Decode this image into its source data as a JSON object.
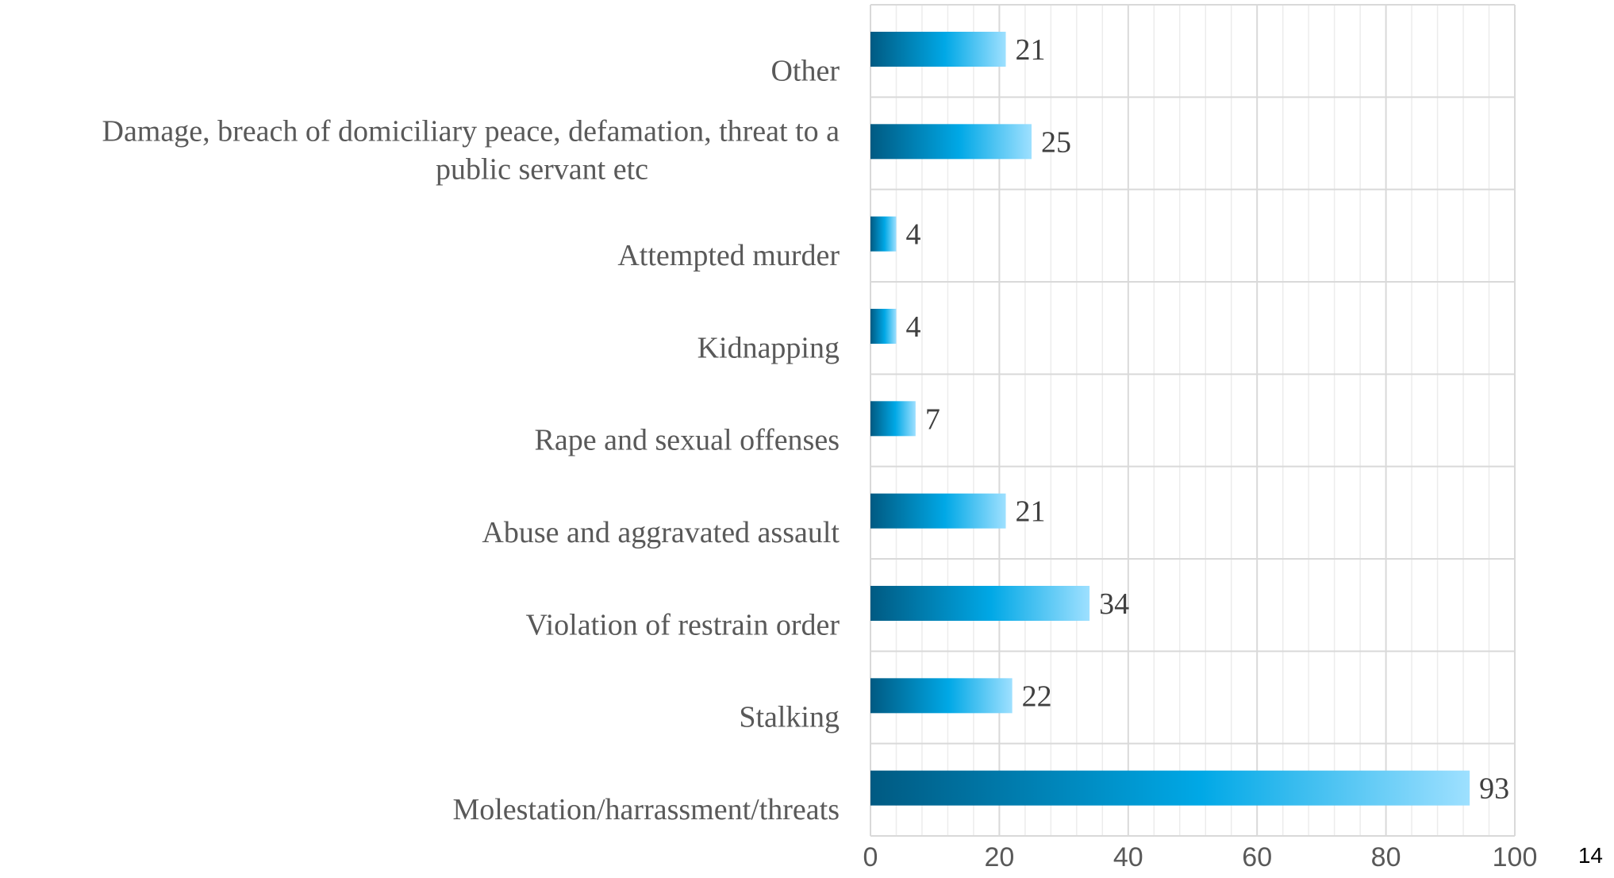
{
  "page_number": "14",
  "chart_data": {
    "type": "bar",
    "orientation": "horizontal",
    "title": "",
    "xlabel": "",
    "ylabel": "",
    "categories": [
      "Other",
      "Damage, breach of domiciliary peace, defamation, threat to a public servant etc",
      "Attempted murder",
      "Kidnapping",
      "Rape and sexual offenses",
      "Abuse and aggravated assault",
      "Violation of restrain order",
      "Stalking",
      "Molestation/harrassment/threats"
    ],
    "values": [
      21,
      25,
      4,
      4,
      7,
      21,
      34,
      22,
      93
    ],
    "xlim": [
      0,
      100
    ],
    "x_ticks": [
      0,
      20,
      40,
      60,
      80,
      100
    ],
    "grid": true,
    "legend": "none",
    "colors": {
      "bar_gradient": [
        "#005a82",
        "#00a8e6",
        "#9ee0ff"
      ],
      "grid_major": "#d9d9d9",
      "grid_minor": "#ececec"
    }
  }
}
